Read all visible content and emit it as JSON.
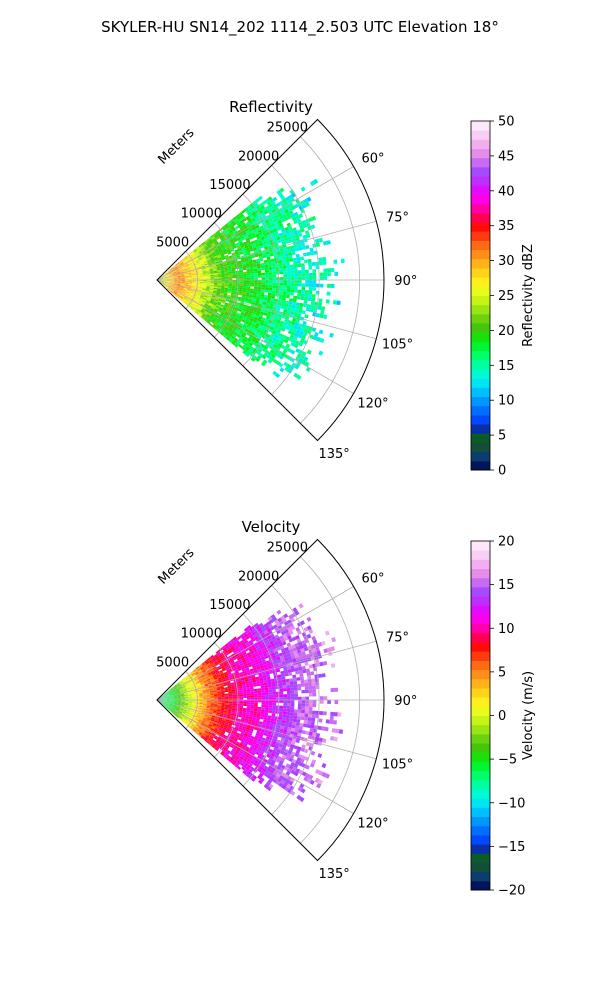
{
  "figure": {
    "title": "SKYLER-HU  SN14_202  1114_2.503 UTC Elevation 18°"
  },
  "chart_data": [
    {
      "type": "heatmap",
      "projection": "polar-sector",
      "title": "Reflectivity",
      "radial_axis_label": "Meters",
      "theta_range_deg": [
        45,
        135
      ],
      "theta_ticks_deg": [
        60,
        75,
        90,
        105,
        120,
        135
      ],
      "theta_tick_labels": [
        "60°",
        "75°",
        "90°",
        "105°",
        "120°",
        "135°"
      ],
      "r_range_m": [
        0,
        28000
      ],
      "r_ticks_m": [
        5000,
        10000,
        15000,
        20000,
        25000
      ],
      "r_tick_labels": [
        "5000",
        "10000",
        "15000",
        "20000",
        "25000"
      ],
      "echo_extent": {
        "theta_deg": [
          51,
          129
        ],
        "r_max_m": [
          19000,
          25000
        ],
        "r_typical_m": 21000
      },
      "radial_profile": {
        "r_m": [
          0,
          2500,
          5000,
          7500,
          10000,
          12500,
          15000,
          17500,
          20000,
          22000
        ],
        "value": [
          24,
          31,
          26,
          21,
          19,
          18,
          16,
          15,
          14,
          14
        ]
      },
      "colorbar": {
        "label": "Reflectivity dBZ",
        "range": [
          0,
          50
        ],
        "ticks": [
          0,
          5,
          10,
          15,
          20,
          25,
          30,
          35,
          40,
          45,
          50
        ],
        "tick_labels": [
          "0",
          "5",
          "10",
          "15",
          "20",
          "25",
          "30",
          "35",
          "40",
          "45",
          "50"
        ],
        "colors": [
          "#01155d",
          "#0a3e6e",
          "#124e3a",
          "#0b5b2a",
          "#0b2fa5",
          "#0049ff",
          "#006fff",
          "#0096ff",
          "#00bfff",
          "#00e5f2",
          "#00fad2",
          "#00ff9f",
          "#00ff6a",
          "#00f630",
          "#19e20b",
          "#43c70c",
          "#6bd20e",
          "#9ae612",
          "#c6f416",
          "#e9fb1b",
          "#fff01c",
          "#ffd21b",
          "#ffb31a",
          "#ff8f18",
          "#ff6a15",
          "#ff3a10",
          "#ff0c08",
          "#ff0052",
          "#ff00a6",
          "#ff00e6",
          "#e40aff",
          "#be2eff",
          "#a74aff",
          "#c96af2",
          "#e48de9",
          "#f2afef",
          "#f9cdf6",
          "#fde7fb"
        ]
      }
    },
    {
      "type": "heatmap",
      "projection": "polar-sector",
      "title": "Velocity",
      "radial_axis_label": "Meters",
      "theta_range_deg": [
        45,
        135
      ],
      "theta_ticks_deg": [
        60,
        75,
        90,
        105,
        120,
        135
      ],
      "theta_tick_labels": [
        "60°",
        "75°",
        "90°",
        "105°",
        "120°",
        "135°"
      ],
      "r_range_m": [
        0,
        28000
      ],
      "r_ticks_m": [
        5000,
        10000,
        15000,
        20000,
        25000
      ],
      "r_tick_labels": [
        "5000",
        "10000",
        "15000",
        "20000",
        "25000"
      ],
      "echo_extent": {
        "theta_deg": [
          51,
          129
        ],
        "r_max_m": [
          19000,
          25000
        ],
        "r_typical_m": 21000
      },
      "radial_profile": {
        "r_m": [
          0,
          2000,
          4000,
          6000,
          8000,
          10000,
          12500,
          15000,
          17500,
          20000,
          22000
        ],
        "value": [
          -8,
          -5,
          0,
          5,
          8,
          10,
          11,
          13,
          15,
          15,
          16
        ]
      },
      "colorbar": {
        "label": "Velocity (m/s)",
        "range": [
          -20,
          20
        ],
        "ticks": [
          -20,
          -15,
          -10,
          -5,
          0,
          5,
          10,
          15,
          20
        ],
        "tick_labels": [
          "−20",
          "−15",
          "−10",
          "−5",
          "0",
          "5",
          "10",
          "15",
          "20"
        ],
        "colors": [
          "#01155d",
          "#0a3e6e",
          "#124e3a",
          "#0b5b2a",
          "#0b2fa5",
          "#0049ff",
          "#006fff",
          "#0096ff",
          "#00bfff",
          "#00e5f2",
          "#00fad2",
          "#00ff9f",
          "#00ff6a",
          "#00f630",
          "#19e20b",
          "#43c70c",
          "#6bd20e",
          "#9ae612",
          "#c6f416",
          "#e9fb1b",
          "#fff01c",
          "#ffd21b",
          "#ffb31a",
          "#ff8f18",
          "#ff6a15",
          "#ff3a10",
          "#ff0c08",
          "#ff0052",
          "#ff00a6",
          "#ff00e6",
          "#e40aff",
          "#be2eff",
          "#a74aff",
          "#c96af2",
          "#e48de9",
          "#f2afef",
          "#f9cdf6",
          "#fde7fb"
        ]
      }
    }
  ]
}
